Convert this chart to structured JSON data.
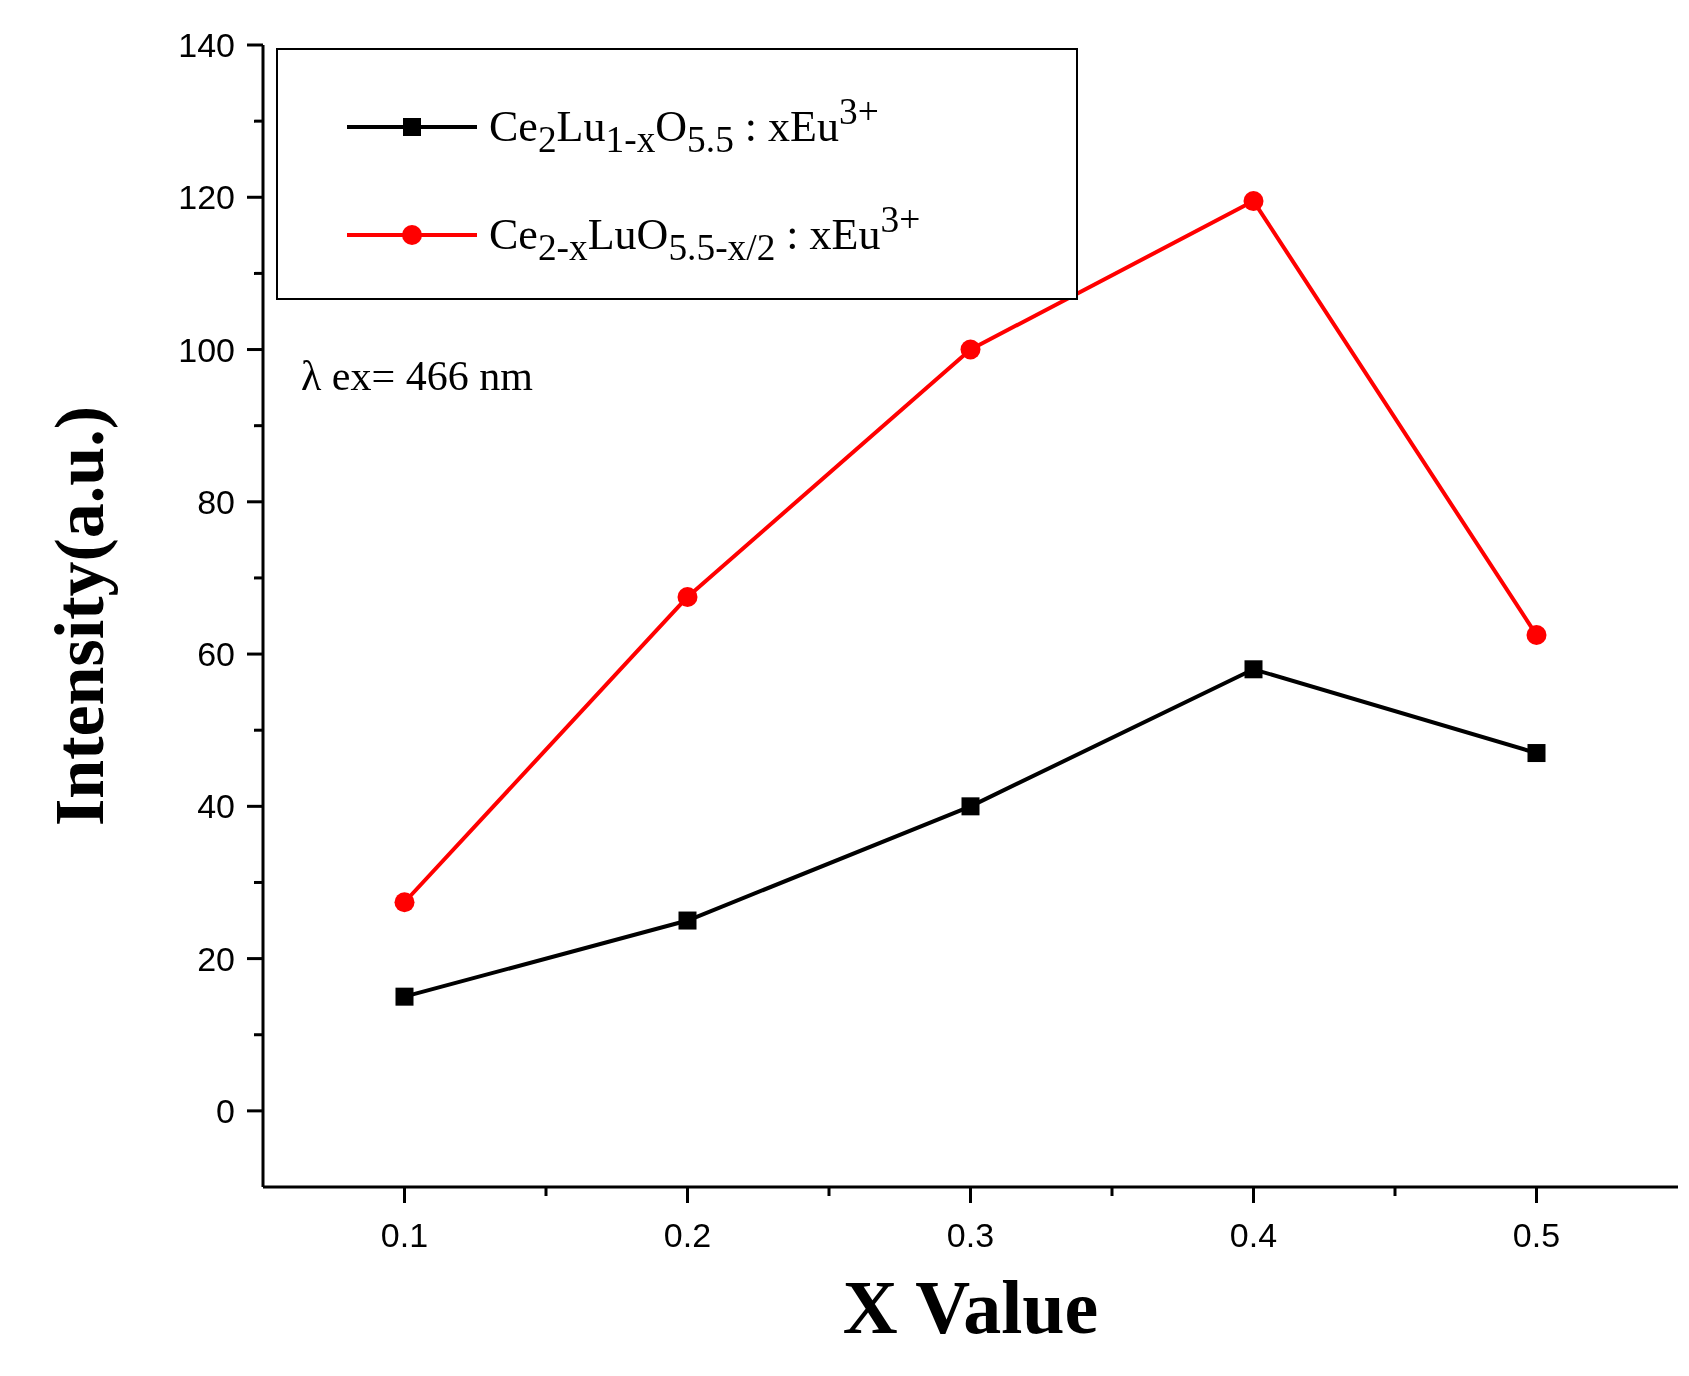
{
  "chart_data": {
    "type": "line",
    "xlabel": "X Value",
    "ylabel": "Intensity(a.u.)",
    "x": [
      0.1,
      0.2,
      0.3,
      0.4,
      0.5
    ],
    "series": [
      {
        "name": "Ce$_{2}$Lu$_{1-x}$O$_{5.5}$ : xEu$^{3+}$",
        "color": "#000000",
        "marker": "square",
        "values": [
          15,
          25,
          40,
          58,
          47
        ]
      },
      {
        "name": "Ce$_{2-x}$LuO$_{5.5-x/2}$ : xEu$^{3+}$",
        "color": "#ff0000",
        "marker": "circle",
        "values": [
          27.4,
          67.5,
          100,
          119.5,
          62.5
        ]
      }
    ],
    "xlim": [
      0.05,
      0.55
    ],
    "xticks": [
      0.1,
      0.2,
      0.3,
      0.4,
      0.5
    ],
    "ylim": [
      -10,
      140
    ],
    "yticks": [
      0,
      20,
      40,
      60,
      80,
      100,
      120,
      140
    ],
    "annotations": [
      "λ ex= 466 nm"
    ],
    "legend": "top left",
    "grid": false,
    "line_style": "solid"
  }
}
